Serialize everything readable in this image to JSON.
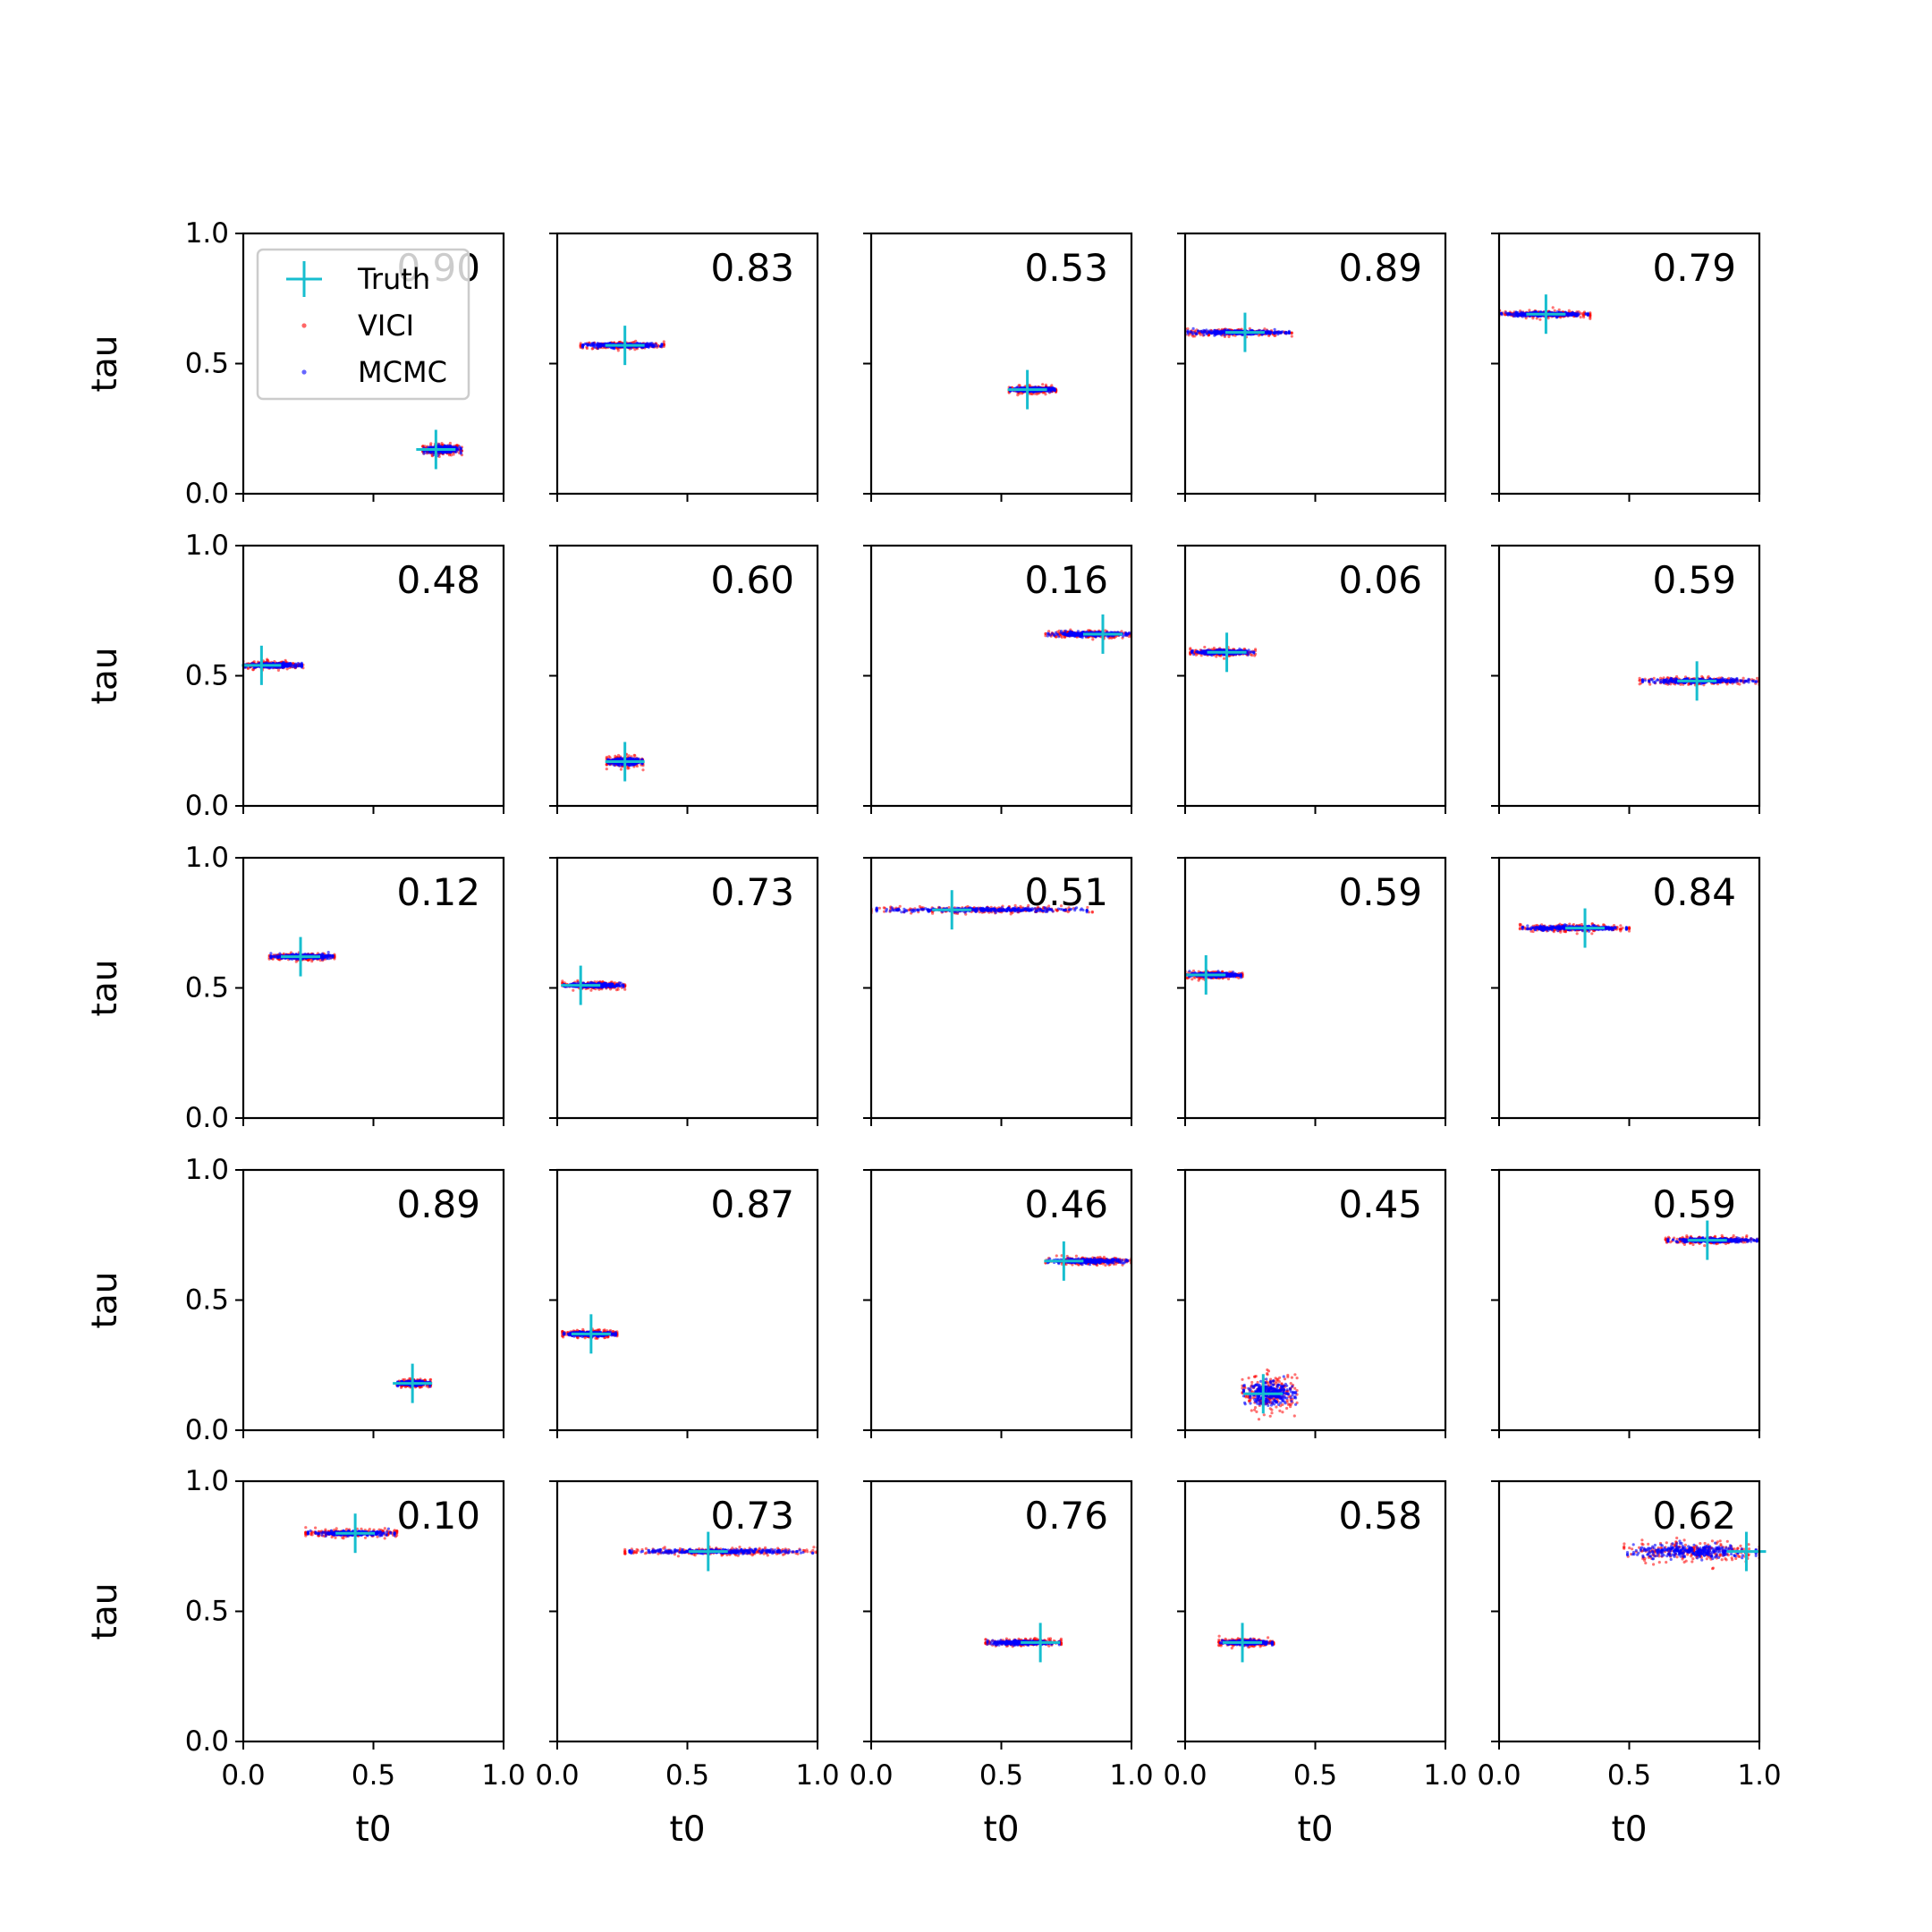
{
  "figure": {
    "xlabel": "t0",
    "ylabel": "tau",
    "legend": {
      "placement": "top-left of first panel",
      "entries": [
        {
          "label": "Truth",
          "marker": "plus",
          "color": "#17becf"
        },
        {
          "label": "VICI",
          "marker": "dot",
          "color": "#ff0000"
        },
        {
          "label": "MCMC",
          "marker": "dot",
          "color": "#0000ff"
        }
      ]
    },
    "colors": {
      "truth": "#17becf",
      "vici": "#ff0000",
      "mcmc": "#0000ff",
      "axes": "#000000"
    }
  },
  "chart_data": [
    {
      "type": "scatter",
      "panel": [
        1,
        1
      ],
      "score": "0.90",
      "truth": {
        "t0": 0.74,
        "tau": 0.17
      },
      "cloud": {
        "t0_min": 0.69,
        "t0_max": 0.84,
        "tau_spread": 0.03
      }
    },
    {
      "type": "scatter",
      "panel": [
        1,
        2
      ],
      "score": "0.83",
      "truth": {
        "t0": 0.26,
        "tau": 0.57
      },
      "cloud": {
        "t0_min": 0.09,
        "t0_max": 0.41,
        "tau_spread": 0.02
      }
    },
    {
      "type": "scatter",
      "panel": [
        1,
        3
      ],
      "score": "0.53",
      "truth": {
        "t0": 0.6,
        "tau": 0.4
      },
      "cloud": {
        "t0_min": 0.53,
        "t0_max": 0.71,
        "tau_spread": 0.02
      }
    },
    {
      "type": "scatter",
      "panel": [
        1,
        4
      ],
      "score": "0.89",
      "truth": {
        "t0": 0.23,
        "tau": 0.62
      },
      "cloud": {
        "t0_min": 0.0,
        "t0_max": 0.41,
        "tau_spread": 0.02
      }
    },
    {
      "type": "scatter",
      "panel": [
        1,
        5
      ],
      "score": "0.79",
      "truth": {
        "t0": 0.18,
        "tau": 0.69
      },
      "cloud": {
        "t0_min": 0.0,
        "t0_max": 0.35,
        "tau_spread": 0.02
      }
    },
    {
      "type": "scatter",
      "panel": [
        2,
        1
      ],
      "score": "0.48",
      "truth": {
        "t0": 0.07,
        "tau": 0.54
      },
      "cloud": {
        "t0_min": 0.0,
        "t0_max": 0.23,
        "tau_spread": 0.02
      }
    },
    {
      "type": "scatter",
      "panel": [
        2,
        2
      ],
      "score": "0.60",
      "truth": {
        "t0": 0.26,
        "tau": 0.17
      },
      "cloud": {
        "t0_min": 0.19,
        "t0_max": 0.33,
        "tau_spread": 0.03
      }
    },
    {
      "type": "scatter",
      "panel": [
        2,
        3
      ],
      "score": "0.16",
      "truth": {
        "t0": 0.89,
        "tau": 0.66
      },
      "cloud": {
        "t0_min": 0.67,
        "t0_max": 1.0,
        "tau_spread": 0.02
      }
    },
    {
      "type": "scatter",
      "panel": [
        2,
        4
      ],
      "score": "0.06",
      "truth": {
        "t0": 0.16,
        "tau": 0.59
      },
      "cloud": {
        "t0_min": 0.02,
        "t0_max": 0.27,
        "tau_spread": 0.02
      }
    },
    {
      "type": "scatter",
      "panel": [
        2,
        5
      ],
      "score": "0.59",
      "truth": {
        "t0": 0.76,
        "tau": 0.48
      },
      "cloud": {
        "t0_min": 0.54,
        "t0_max": 1.0,
        "tau_spread": 0.02
      }
    },
    {
      "type": "scatter",
      "panel": [
        3,
        1
      ],
      "score": "0.12",
      "truth": {
        "t0": 0.22,
        "tau": 0.62
      },
      "cloud": {
        "t0_min": 0.1,
        "t0_max": 0.35,
        "tau_spread": 0.02
      }
    },
    {
      "type": "scatter",
      "panel": [
        3,
        2
      ],
      "score": "0.73",
      "truth": {
        "t0": 0.09,
        "tau": 0.51
      },
      "cloud": {
        "t0_min": 0.02,
        "t0_max": 0.26,
        "tau_spread": 0.02
      }
    },
    {
      "type": "scatter",
      "panel": [
        3,
        3
      ],
      "score": "0.51",
      "truth": {
        "t0": 0.31,
        "tau": 0.8
      },
      "cloud": {
        "t0_min": 0.0,
        "t0_max": 0.85,
        "tau_spread": 0.02
      }
    },
    {
      "type": "scatter",
      "panel": [
        3,
        4
      ],
      "score": "0.59",
      "truth": {
        "t0": 0.08,
        "tau": 0.55
      },
      "cloud": {
        "t0_min": 0.0,
        "t0_max": 0.22,
        "tau_spread": 0.02
      }
    },
    {
      "type": "scatter",
      "panel": [
        3,
        5
      ],
      "score": "0.84",
      "truth": {
        "t0": 0.33,
        "tau": 0.73
      },
      "cloud": {
        "t0_min": 0.08,
        "t0_max": 0.5,
        "tau_spread": 0.02
      }
    },
    {
      "type": "scatter",
      "panel": [
        4,
        1
      ],
      "score": "0.89",
      "truth": {
        "t0": 0.65,
        "tau": 0.18
      },
      "cloud": {
        "t0_min": 0.59,
        "t0_max": 0.72,
        "tau_spread": 0.02
      }
    },
    {
      "type": "scatter",
      "panel": [
        4,
        2
      ],
      "score": "0.87",
      "truth": {
        "t0": 0.13,
        "tau": 0.37
      },
      "cloud": {
        "t0_min": 0.02,
        "t0_max": 0.23,
        "tau_spread": 0.02
      }
    },
    {
      "type": "scatter",
      "panel": [
        4,
        3
      ],
      "score": "0.46",
      "truth": {
        "t0": 0.74,
        "tau": 0.65
      },
      "cloud": {
        "t0_min": 0.67,
        "t0_max": 1.0,
        "tau_spread": 0.02
      }
    },
    {
      "type": "scatter",
      "panel": [
        4,
        4
      ],
      "score": "0.45",
      "truth": {
        "t0": 0.3,
        "tau": 0.14
      },
      "cloud": {
        "t0_min": 0.22,
        "t0_max": 0.43,
        "tau_spread": 0.1
      }
    },
    {
      "type": "scatter",
      "panel": [
        4,
        5
      ],
      "score": "0.59",
      "truth": {
        "t0": 0.8,
        "tau": 0.73
      },
      "cloud": {
        "t0_min": 0.64,
        "t0_max": 1.0,
        "tau_spread": 0.02
      }
    },
    {
      "type": "scatter",
      "panel": [
        5,
        1
      ],
      "score": "0.10",
      "truth": {
        "t0": 0.43,
        "tau": 0.8
      },
      "cloud": {
        "t0_min": 0.24,
        "t0_max": 0.59,
        "tau_spread": 0.02
      }
    },
    {
      "type": "scatter",
      "panel": [
        5,
        2
      ],
      "score": "0.73",
      "truth": {
        "t0": 0.58,
        "tau": 0.73
      },
      "cloud": {
        "t0_min": 0.26,
        "t0_max": 1.0,
        "tau_spread": 0.02
      }
    },
    {
      "type": "scatter",
      "panel": [
        5,
        3
      ],
      "score": "0.76",
      "truth": {
        "t0": 0.65,
        "tau": 0.38
      },
      "cloud": {
        "t0_min": 0.44,
        "t0_max": 0.73,
        "tau_spread": 0.02
      }
    },
    {
      "type": "scatter",
      "panel": [
        5,
        4
      ],
      "score": "0.58",
      "truth": {
        "t0": 0.22,
        "tau": 0.38
      },
      "cloud": {
        "t0_min": 0.13,
        "t0_max": 0.34,
        "tau_spread": 0.02
      }
    },
    {
      "type": "scatter",
      "panel": [
        5,
        5
      ],
      "score": "0.62",
      "truth": {
        "t0": 0.95,
        "tau": 0.73
      },
      "cloud": {
        "t0_min": 0.48,
        "t0_max": 1.0,
        "tau_spread": 0.06
      }
    }
  ],
  "axes": {
    "xlim": [
      0,
      1
    ],
    "ylim": [
      0,
      1
    ],
    "xticks": [
      "0.0",
      "0.5",
      "1.0"
    ],
    "yticks": [
      "0.0",
      "0.5",
      "1.0"
    ],
    "grid": false
  }
}
